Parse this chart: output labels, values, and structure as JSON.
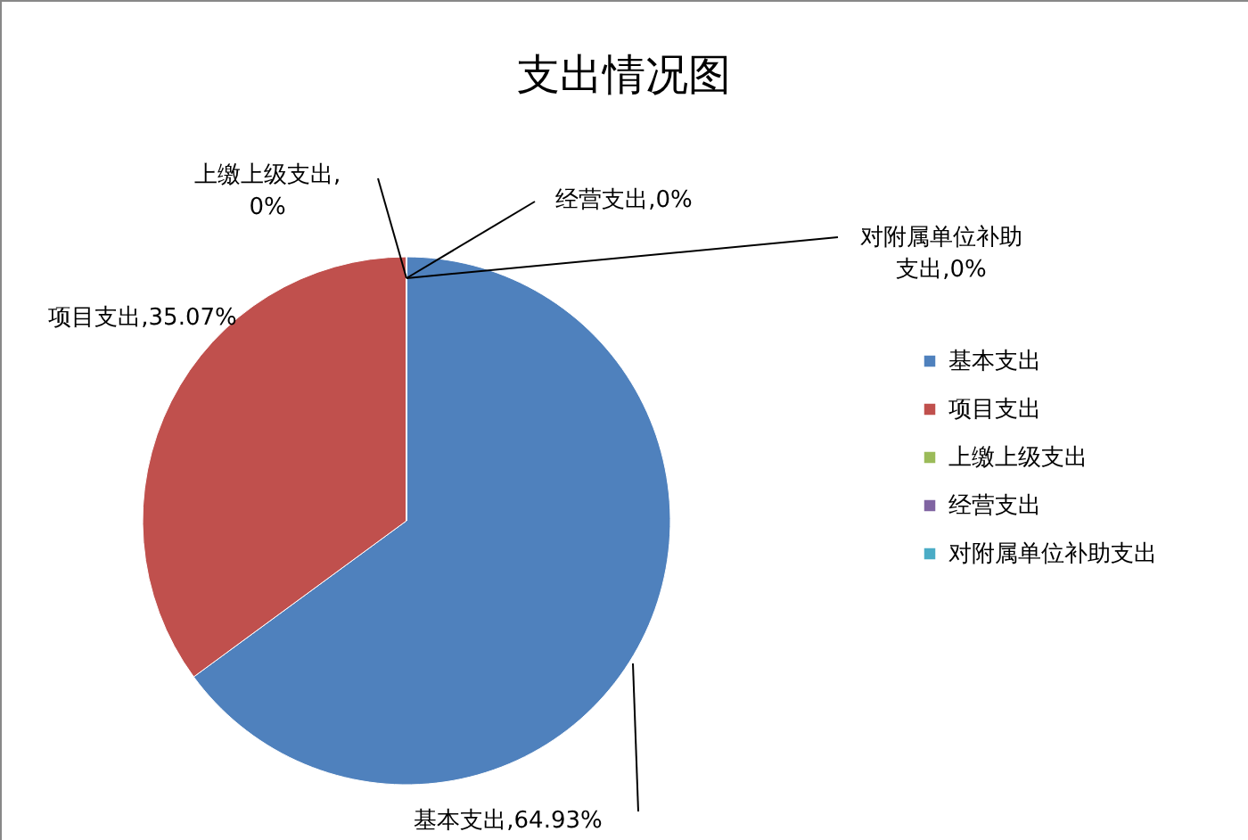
{
  "chart_data": {
    "type": "pie",
    "title": "支出情况图",
    "categories": [
      "基本支出",
      "项目支出",
      "上缴上级支出",
      "经营支出",
      "对附属单位补助支出"
    ],
    "values": [
      64.93,
      35.07,
      0,
      0,
      0
    ],
    "colors": [
      "#4f81bd",
      "#c0504d",
      "#9bbb59",
      "#8064a2",
      "#4bacc6"
    ],
    "value_labels": [
      "基本支出,64.93%",
      "项目支出,35.07%",
      "上缴上级支出,0%",
      "经营支出,0%",
      "对附属单位补助支出,0%"
    ],
    "legend": "right"
  }
}
